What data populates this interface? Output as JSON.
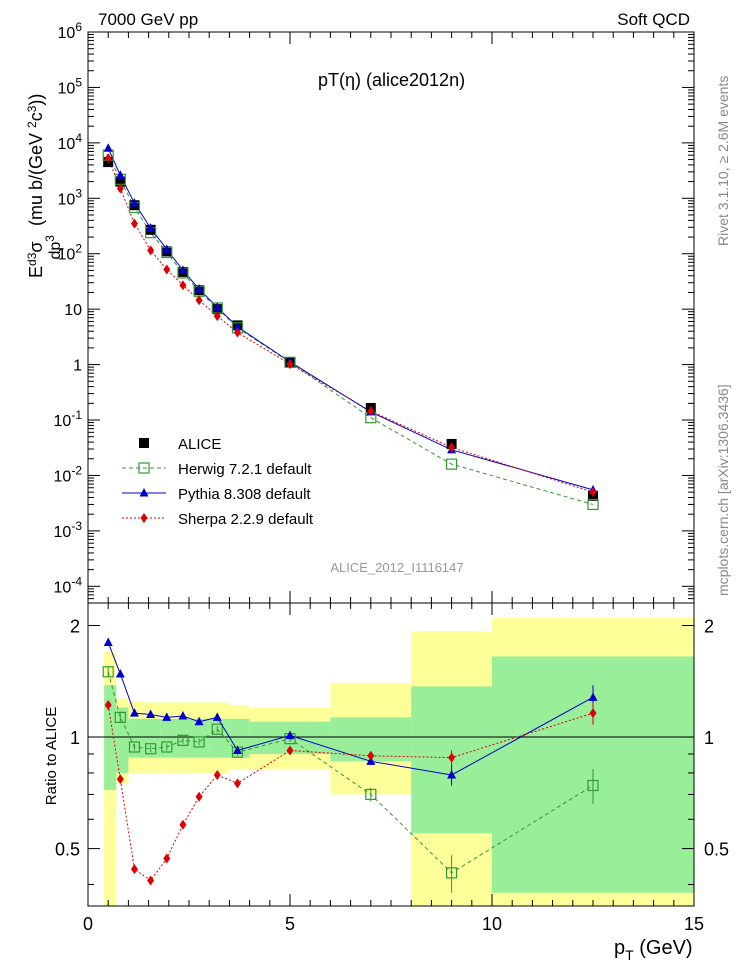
{
  "header": {
    "left": "7000 GeV pp",
    "right": "Soft QCD"
  },
  "side_labels": {
    "top": "Rivet 3.1.10, ≥ 2.6M events",
    "bottom": "mcplots.cern.ch [arXiv:1306.3436]"
  },
  "chart_data": [
    {
      "type": "scatter",
      "title": "pT(η) (alice2012n)",
      "watermark": "ALICE_2012_I1116147",
      "ylabel": "E d³σ/dp³ (mu b/(GeV ²c³))",
      "yscale": "log",
      "xlim": [
        0,
        15
      ],
      "ylim": [
        5e-05,
        1000000
      ],
      "x_ticks": [
        0,
        5,
        10,
        15
      ],
      "y_tick_labels": [
        "10⁴",
        "10³",
        "10²",
        "10",
        "1",
        "10⁻¹",
        "10⁻²",
        "10⁻³",
        "10⁻⁴"
      ],
      "legend_position": "bottom-left",
      "x": [
        0.5,
        0.8,
        1.15,
        1.55,
        1.95,
        2.35,
        2.75,
        3.2,
        3.7,
        5.0,
        7.0,
        9.0,
        12.5
      ],
      "series": [
        {
          "name": "ALICE",
          "color": "#000000",
          "marker": "square-filled",
          "values": [
            4500,
            2000,
            750,
            270,
            110,
            47,
            22,
            10,
            5.1,
            1.1,
            0.165,
            0.037,
            0.0043
          ]
        },
        {
          "name": "Herwig 7.2.1 default",
          "color": "#339933",
          "marker": "square-open",
          "dash": "dashed",
          "values": [
            6000,
            2200,
            680,
            240,
            105,
            45,
            21,
            10.5,
            4.6,
            1.1,
            0.11,
            0.016,
            0.003
          ]
        },
        {
          "name": "Pythia 8.308 default",
          "color": "#0000cc",
          "marker": "triangle",
          "dash": "solid",
          "values": [
            8000,
            2600,
            820,
            290,
            120,
            50,
            23,
            10.8,
            4.8,
            1.12,
            0.14,
            0.029,
            0.0055
          ]
        },
        {
          "name": "Sherpa 2.2.9 default",
          "color": "#dd0000",
          "marker": "diamond",
          "dash": "dotted",
          "values": [
            5300,
            1500,
            350,
            115,
            52,
            27,
            14.5,
            7.5,
            3.8,
            1.02,
            0.145,
            0.032,
            0.005
          ]
        }
      ]
    },
    {
      "type": "scatter",
      "ylabel": "Ratio to ALICE",
      "xlabel": "p_T (GeV)",
      "xlim": [
        0,
        15
      ],
      "ylim": [
        0.35,
        2.3
      ],
      "y_ticks": [
        0.5,
        1,
        2
      ],
      "x": [
        0.5,
        0.8,
        1.15,
        1.55,
        1.95,
        2.35,
        2.75,
        3.2,
        3.7,
        5.0,
        7.0,
        9.0,
        12.5
      ],
      "bands": {
        "bin_edges": [
          0.4,
          0.7,
          1.0,
          1.4,
          1.8,
          2.2,
          2.6,
          3.0,
          3.5,
          4.0,
          6.0,
          8.0,
          10.0,
          15.0
        ],
        "stat_low": [
          0.72,
          0.8,
          0.88,
          0.88,
          0.88,
          0.88,
          0.88,
          0.88,
          0.88,
          0.9,
          0.86,
          0.55,
          0.38
        ],
        "stat_high": [
          1.38,
          1.2,
          1.12,
          1.12,
          1.12,
          1.12,
          1.12,
          1.12,
          1.12,
          1.1,
          1.13,
          1.37,
          1.65
        ],
        "total_low": [
          0.35,
          0.75,
          0.8,
          0.8,
          0.8,
          0.8,
          0.8,
          0.8,
          0.82,
          0.82,
          0.7,
          0.35,
          0.35
        ],
        "total_high": [
          1.7,
          1.27,
          1.25,
          1.24,
          1.24,
          1.24,
          1.24,
          1.24,
          1.22,
          1.2,
          1.4,
          1.93,
          2.1
        ]
      },
      "series": [
        {
          "name": "Herwig 7.2.1 default",
          "color": "#339933",
          "values": [
            1.5,
            1.13,
            0.94,
            0.93,
            0.94,
            0.98,
            0.97,
            1.05,
            0.91,
            0.99,
            0.7,
            0.43,
            0.74
          ],
          "errors": [
            0.05,
            0.03,
            0.02,
            0.02,
            0.02,
            0.02,
            0.02,
            0.02,
            0.02,
            0.02,
            0.03,
            0.05,
            0.08
          ]
        },
        {
          "name": "Pythia 8.308 default",
          "color": "#0000cc",
          "values": [
            1.8,
            1.48,
            1.16,
            1.15,
            1.13,
            1.14,
            1.1,
            1.13,
            0.92,
            1.01,
            0.86,
            0.79,
            1.28
          ],
          "errors": [
            0.02,
            0.02,
            0.01,
            0.01,
            0.01,
            0.01,
            0.01,
            0.01,
            0.01,
            0.02,
            0.02,
            0.05,
            0.1
          ]
        },
        {
          "name": "Sherpa 2.2.9 default",
          "color": "#dd0000",
          "values": [
            1.22,
            0.77,
            0.44,
            0.41,
            0.47,
            0.58,
            0.69,
            0.79,
            0.75,
            0.92,
            0.89,
            0.88,
            1.16
          ],
          "errors": [
            0.02,
            0.01,
            0.01,
            0.01,
            0.01,
            0.01,
            0.01,
            0.01,
            0.01,
            0.01,
            0.02,
            0.04,
            0.08
          ]
        }
      ]
    }
  ]
}
